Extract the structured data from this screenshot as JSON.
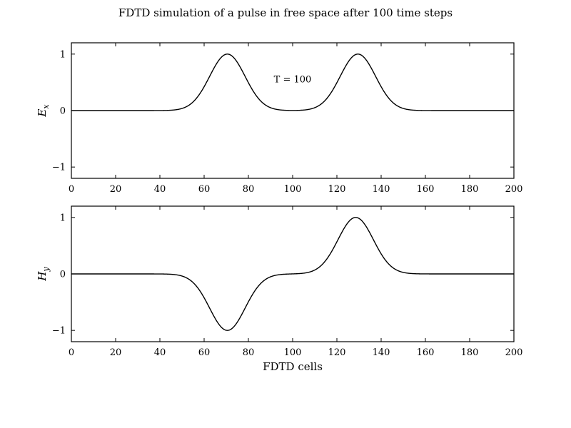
{
  "chart_data": [
    {
      "type": "line",
      "panel": "top",
      "xlabel": "",
      "ylabel": "E",
      "ylabel_sub": "x",
      "xlim": [
        0,
        200
      ],
      "ylim": [
        -1.2,
        1.2
      ],
      "xticks": [
        0,
        20,
        40,
        60,
        80,
        100,
        120,
        140,
        160,
        180,
        200
      ],
      "yticks": [
        1,
        0,
        -1
      ],
      "ytick_labels": [
        "1",
        "0",
        "−1"
      ],
      "annotation": "T = 100",
      "annotation_xy": [
        100,
        0.55
      ],
      "series": [
        {
          "color": "#000000",
          "pulses": [
            {
              "center": 70.5,
              "amplitude": 1.0,
              "width": 8
            },
            {
              "center": 129.5,
              "amplitude": 1.0,
              "width": 8
            }
          ]
        }
      ]
    },
    {
      "type": "line",
      "panel": "bottom",
      "xlabel": "FDTD cells",
      "ylabel": "H",
      "ylabel_sub": "y",
      "xlim": [
        0,
        200
      ],
      "ylim": [
        -1.2,
        1.2
      ],
      "xticks": [
        0,
        20,
        40,
        60,
        80,
        100,
        120,
        140,
        160,
        180,
        200
      ],
      "yticks": [
        1,
        0,
        -1
      ],
      "ytick_labels": [
        "1",
        "0",
        "−1"
      ],
      "series": [
        {
          "color": "#000000",
          "pulses": [
            {
              "center": 70.5,
              "amplitude": -1.0,
              "width": 8
            },
            {
              "center": 128.5,
              "amplitude": 1.0,
              "width": 8
            }
          ]
        }
      ]
    }
  ],
  "figure": {
    "title": "FDTD simulation of a pulse in free space after 100 time steps"
  }
}
